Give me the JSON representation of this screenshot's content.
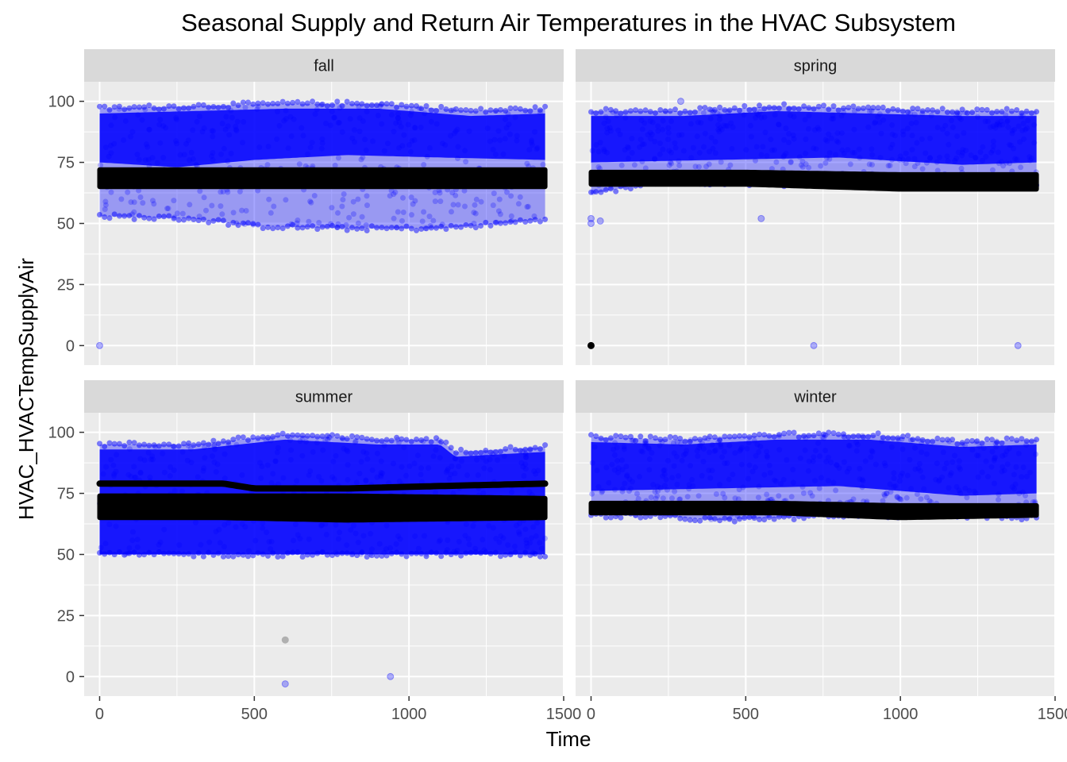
{
  "chart_data": {
    "type": "scatter",
    "title": "Seasonal Supply and Return Air Temperatures in the HVAC Subsystem",
    "xlabel": "Time",
    "ylabel": "HVAC_HVACTempSupplyAir",
    "xlim": [
      -50,
      1500
    ],
    "ylim": [
      -8,
      108
    ],
    "x_ticks": [
      0,
      500,
      1000,
      1500
    ],
    "y_ticks": [
      0,
      25,
      50,
      75,
      100
    ],
    "grid": true,
    "legend": "none",
    "colors": {
      "supply": "#0000ff",
      "return": "#000000",
      "panel_bg": "#ebebeb",
      "strip_bg": "#d9d9d9",
      "grid": "#ffffff"
    },
    "facets": [
      {
        "name": "fall",
        "supply_band": {
          "x_range": [
            0,
            1440
          ],
          "upper": [
            [
              0,
              97
            ],
            [
              300,
              98
            ],
            [
              600,
              99
            ],
            [
              900,
              99
            ],
            [
              1200,
              96
            ],
            [
              1440,
              97
            ]
          ],
          "lower": [
            [
              0,
              53
            ],
            [
              300,
              52
            ],
            [
              500,
              49
            ],
            [
              800,
              48
            ],
            [
              1100,
              48
            ],
            [
              1300,
              50
            ],
            [
              1440,
              52
            ]
          ],
          "dense_lower": [
            [
              0,
              75
            ],
            [
              250,
              73
            ],
            [
              500,
              76
            ],
            [
              800,
              78
            ],
            [
              1100,
              77
            ],
            [
              1440,
              76
            ]
          ]
        },
        "return_band": {
          "upper": [
            [
              0,
              72
            ],
            [
              400,
              72
            ],
            [
              800,
              72
            ],
            [
              1440,
              72
            ]
          ],
          "lower": [
            [
              0,
              65
            ],
            [
              400,
              65
            ],
            [
              800,
              65
            ],
            [
              1440,
              65
            ]
          ]
        },
        "supply_outliers": [
          [
            0,
            0
          ]
        ],
        "return_outliers": []
      },
      {
        "name": "spring",
        "supply_band": {
          "x_range": [
            0,
            1440
          ],
          "upper": [
            [
              0,
              96
            ],
            [
              300,
              96
            ],
            [
              600,
              98
            ],
            [
              900,
              97
            ],
            [
              1200,
              96
            ],
            [
              1440,
              96
            ]
          ],
          "lower": [
            [
              0,
              62
            ],
            [
              200,
              67
            ],
            [
              600,
              66
            ],
            [
              1000,
              66
            ],
            [
              1440,
              66
            ]
          ],
          "dense_lower": [
            [
              0,
              75
            ],
            [
              400,
              76
            ],
            [
              800,
              77
            ],
            [
              1200,
              74
            ],
            [
              1440,
              75
            ]
          ]
        },
        "return_band": {
          "upper": [
            [
              0,
              71
            ],
            [
              500,
              71
            ],
            [
              1000,
              70
            ],
            [
              1440,
              70
            ]
          ],
          "lower": [
            [
              0,
              66
            ],
            [
              500,
              66
            ],
            [
              1000,
              64
            ],
            [
              1440,
              64
            ]
          ]
        },
        "supply_outliers": [
          [
            0,
            52
          ],
          [
            0,
            50
          ],
          [
            30,
            51
          ],
          [
            290,
            100
          ],
          [
            550,
            52
          ],
          [
            720,
            0
          ],
          [
            1380,
            0
          ]
        ],
        "return_outliers": [
          [
            0,
            0
          ]
        ]
      },
      {
        "name": "summer",
        "supply_band": {
          "x_range": [
            0,
            1440
          ],
          "upper": [
            [
              0,
              95
            ],
            [
              300,
              95
            ],
            [
              600,
              99
            ],
            [
              900,
              97
            ],
            [
              1100,
              97
            ],
            [
              1150,
              92
            ],
            [
              1440,
              94
            ]
          ],
          "lower": [
            [
              0,
              50
            ],
            [
              400,
              50
            ],
            [
              800,
              50
            ],
            [
              1440,
              50
            ]
          ],
          "dense_lower": [
            [
              0,
              50
            ],
            [
              1440,
              50
            ]
          ]
        },
        "return_band": {
          "upper": [
            [
              0,
              74
            ],
            [
              400,
              74
            ],
            [
              800,
              74
            ],
            [
              1440,
              73
            ]
          ],
          "lower": [
            [
              0,
              65
            ],
            [
              400,
              65
            ],
            [
              800,
              64
            ],
            [
              1440,
              65
            ]
          ]
        },
        "return_line": [
          [
            0,
            79
          ],
          [
            400,
            79
          ],
          [
            500,
            77
          ],
          [
            800,
            77
          ],
          [
            1100,
            78
          ],
          [
            1440,
            79
          ]
        ],
        "supply_outliers": [
          [
            600,
            -3
          ],
          [
            940,
            0
          ]
        ],
        "return_outliers": [
          [
            600,
            15
          ]
        ]
      },
      {
        "name": "winter",
        "supply_band": {
          "x_range": [
            0,
            1440
          ],
          "upper": [
            [
              0,
              98
            ],
            [
              300,
              97
            ],
            [
              600,
              99
            ],
            [
              900,
              99
            ],
            [
              1200,
              96
            ],
            [
              1440,
              97
            ]
          ],
          "lower": [
            [
              0,
              66
            ],
            [
              200,
              66
            ],
            [
              400,
              64
            ],
            [
              600,
              65
            ],
            [
              900,
              66
            ],
            [
              1200,
              66
            ],
            [
              1440,
              65
            ]
          ],
          "dense_lower": [
            [
              0,
              76
            ],
            [
              400,
              77
            ],
            [
              800,
              78
            ],
            [
              1200,
              74
            ],
            [
              1440,
              75
            ]
          ]
        },
        "return_band": {
          "upper": [
            [
              0,
              71
            ],
            [
              600,
              71
            ],
            [
              1000,
              70
            ],
            [
              1440,
              70
            ]
          ],
          "lower": [
            [
              0,
              67
            ],
            [
              600,
              67
            ],
            [
              1000,
              65
            ],
            [
              1440,
              66
            ]
          ]
        },
        "supply_outliers": [],
        "return_outliers": []
      }
    ]
  }
}
